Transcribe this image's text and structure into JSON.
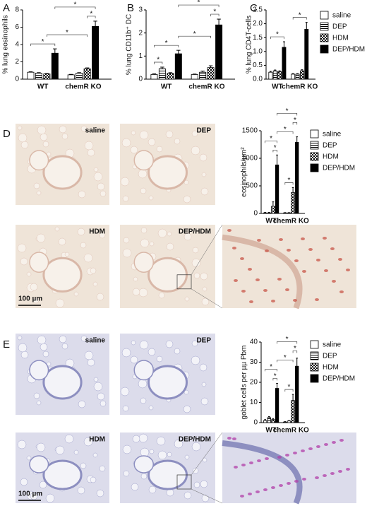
{
  "panel_labels": [
    "A",
    "B",
    "C",
    "D",
    "E"
  ],
  "micrographs": [
    {
      "labels": [
        "saline",
        "DEP",
        "HDM",
        "DEP/HDM"
      ],
      "scale_bar": "100 µm"
    },
    {
      "labels": [
        "saline",
        "DEP",
        "HDM",
        "DEP/HDM"
      ],
      "scale_bar": "100 µm"
    }
  ],
  "chart_data": [
    {
      "type": "bar",
      "ylabel": "% lung eosinophils",
      "categories": [
        "WT",
        "chemR KO"
      ],
      "ylim": [
        0,
        8
      ],
      "yticks": [
        0,
        2,
        4,
        6,
        8
      ],
      "legend": false,
      "significance_label": "*",
      "comparisons": [
        [
          0,
          0,
          0,
          3
        ],
        [
          0,
          2,
          1,
          2
        ],
        [
          1,
          2,
          1,
          3
        ],
        [
          0,
          3,
          1,
          3
        ]
      ],
      "series": [
        {
          "color": "#ffffff",
          "pattern": "solid",
          "values": [
            0.8,
            0.5
          ],
          "errors": [
            0.05,
            0.05
          ]
        },
        {
          "color": "#ffffff",
          "pattern": "stripes",
          "values": [
            0.7,
            0.7
          ],
          "errors": [
            0.05,
            0.05
          ]
        },
        {
          "color": "#ffffff",
          "pattern": "checker",
          "values": [
            0.6,
            1.2
          ],
          "errors": [
            0.05,
            0.1
          ]
        },
        {
          "color": "#000000",
          "pattern": "solid",
          "values": [
            3.0,
            6.1
          ],
          "errors": [
            0.5,
            0.6
          ]
        }
      ]
    },
    {
      "type": "bar",
      "ylabel": "% lung CD11b⁺ DC",
      "categories": [
        "WT",
        "chemR KO"
      ],
      "ylim": [
        0,
        3
      ],
      "yticks": [
        0,
        1,
        2,
        3
      ],
      "legend": false,
      "significance_label": "*",
      "comparisons": [
        [
          0,
          0,
          0,
          1
        ],
        [
          0,
          0,
          0,
          3
        ],
        [
          0,
          3,
          1,
          2
        ],
        [
          1,
          2,
          1,
          3
        ],
        [
          0,
          3,
          1,
          3
        ]
      ],
      "series": [
        {
          "color": "#ffffff",
          "pattern": "solid",
          "values": [
            0.2,
            0.2
          ],
          "errors": [
            0.03,
            0.02
          ]
        },
        {
          "color": "#ffffff",
          "pattern": "stripes",
          "values": [
            0.45,
            0.3
          ],
          "errors": [
            0.07,
            0.05
          ]
        },
        {
          "color": "#ffffff",
          "pattern": "checker",
          "values": [
            0.25,
            0.5
          ],
          "errors": [
            0.03,
            0.08
          ]
        },
        {
          "color": "#000000",
          "pattern": "solid",
          "values": [
            1.1,
            2.35
          ],
          "errors": [
            0.15,
            0.25
          ]
        }
      ]
    },
    {
      "type": "bar",
      "ylabel": "% lung CD4T-cells",
      "categories": [
        "WT",
        "chemR KO"
      ],
      "ylim": [
        0,
        2.5
      ],
      "yticks": [
        {
          "value": 0,
          "label": "0.0"
        },
        {
          "value": 0.5,
          "label": "0.5"
        },
        {
          "value": 1,
          "label": "1.0"
        },
        {
          "value": 1.5,
          "label": "1.5"
        },
        {
          "value": 2,
          "label": "2.0"
        },
        {
          "value": 2.5,
          "label": "2.5"
        }
      ],
      "legend": true,
      "significance_label": "*",
      "comparisons": [
        [
          0,
          0,
          0,
          3
        ],
        [
          1,
          0,
          1,
          3
        ]
      ],
      "series": [
        {
          "name": "saline",
          "color": "#ffffff",
          "pattern": "solid",
          "values": [
            0.25,
            0.18
          ],
          "errors": [
            0.03,
            0.02
          ]
        },
        {
          "name": "DEP",
          "color": "#ffffff",
          "pattern": "stripes",
          "values": [
            0.3,
            0.18
          ],
          "errors": [
            0.03,
            0.02
          ]
        },
        {
          "name": "HDM",
          "color": "#ffffff",
          "pattern": "checker",
          "values": [
            0.27,
            0.3
          ],
          "errors": [
            0.03,
            0.04
          ]
        },
        {
          "name": "DEP/HDM",
          "color": "#000000",
          "pattern": "solid",
          "values": [
            1.15,
            1.8
          ],
          "errors": [
            0.2,
            0.25
          ]
        }
      ]
    },
    {
      "type": "bar",
      "ylabel": "eosinophils/µm²",
      "categories": [
        "WT",
        "chemR KO"
      ],
      "ylim": [
        0,
        1500
      ],
      "yticks": [
        0,
        500,
        1000,
        1500
      ],
      "legend": true,
      "significance_label": "*",
      "comparisons": [
        [
          0,
          2,
          0,
          3
        ],
        [
          0,
          0,
          0,
          3
        ],
        [
          1,
          0,
          1,
          2
        ],
        [
          0,
          3,
          1,
          2
        ],
        [
          1,
          2,
          1,
          3
        ],
        [
          0,
          3,
          1,
          3
        ]
      ],
      "series": [
        {
          "name": "saline",
          "color": "#ffffff",
          "pattern": "solid",
          "values": [
            10,
            10
          ],
          "errors": [
            10,
            5
          ]
        },
        {
          "name": "DEP",
          "color": "#ffffff",
          "pattern": "stripes",
          "values": [
            10,
            10
          ],
          "errors": [
            10,
            5
          ]
        },
        {
          "name": "HDM",
          "color": "#ffffff",
          "pattern": "checker",
          "values": [
            130,
            380
          ],
          "errors": [
            80,
            90
          ]
        },
        {
          "name": "DEP/HDM",
          "color": "#000000",
          "pattern": "solid",
          "values": [
            880,
            1290
          ],
          "errors": [
            180,
            100
          ]
        }
      ]
    },
    {
      "type": "bar",
      "ylabel": "goblet cells per µµ Pbm",
      "categories": [
        "WT",
        "chemR KO"
      ],
      "ylim": [
        0,
        40
      ],
      "yticks": [
        0,
        10,
        20,
        30,
        40
      ],
      "legend": true,
      "significance_label": "*",
      "comparisons": [
        [
          0,
          2,
          0,
          3
        ],
        [
          0,
          0,
          0,
          3
        ],
        [
          1,
          0,
          1,
          2
        ],
        [
          0,
          3,
          1,
          2
        ],
        [
          1,
          2,
          1,
          3
        ],
        [
          0,
          3,
          1,
          3
        ]
      ],
      "series": [
        {
          "name": "saline",
          "color": "#ffffff",
          "pattern": "solid",
          "values": [
            1,
            0.3
          ],
          "errors": [
            0.5,
            0.2
          ]
        },
        {
          "name": "DEP",
          "color": "#ffffff",
          "pattern": "stripes",
          "values": [
            2.5,
            0.8
          ],
          "errors": [
            0.5,
            0.2
          ]
        },
        {
          "name": "HDM",
          "color": "#ffffff",
          "pattern": "checker",
          "values": [
            1.5,
            11
          ],
          "errors": [
            0.5,
            3
          ]
        },
        {
          "name": "DEP/HDM",
          "color": "#000000",
          "pattern": "solid",
          "values": [
            17,
            28
          ],
          "errors": [
            2.5,
            4
          ]
        }
      ]
    }
  ]
}
